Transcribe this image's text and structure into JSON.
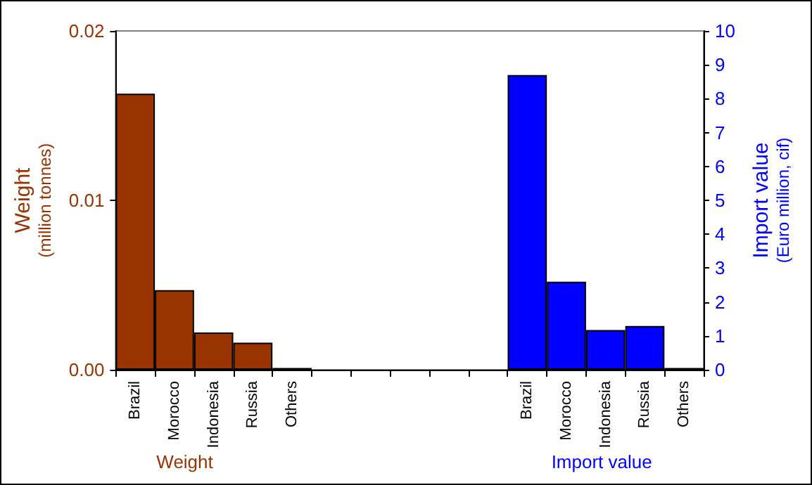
{
  "chart_data": {
    "type": "bar",
    "categories": [
      "Brazil",
      "Morocco",
      "Indonesia",
      "Russia",
      "Others",
      null,
      null,
      null,
      null,
      null,
      "Brazil",
      "Morocco",
      "Indonesia",
      "Russia",
      "Others"
    ],
    "series": [
      {
        "color": "#993300",
        "values": [
          0.0163,
          0.0047,
          0.0022,
          0.0016,
          0.0001,
          null,
          null,
          null,
          null,
          null,
          null,
          null,
          null,
          null,
          null
        ]
      },
      {
        "color": "#0000ff",
        "axis": "y2",
        "values": [
          null,
          null,
          null,
          null,
          null,
          null,
          null,
          null,
          null,
          null,
          8.7,
          2.6,
          1.17,
          1.29,
          0.05
        ]
      }
    ],
    "ylabel": "Weight\n(million tonnes)",
    "y2label": "Import value\n(Euro million, cif)",
    "ylim": [
      0,
      0.02
    ],
    "yticks": [
      {
        "value": 0,
        "label": "0.00"
      },
      {
        "value": 0.01,
        "label": "0.01"
      },
      {
        "value": 0.02,
        "label": "0.02"
      }
    ],
    "y2lim": [
      0,
      10
    ],
    "y2ticks": [
      0,
      1,
      2,
      3,
      4,
      5,
      6,
      7,
      8,
      9,
      10
    ],
    "annotations": [
      "Weight",
      "Import value"
    ],
    "grid": false
  }
}
